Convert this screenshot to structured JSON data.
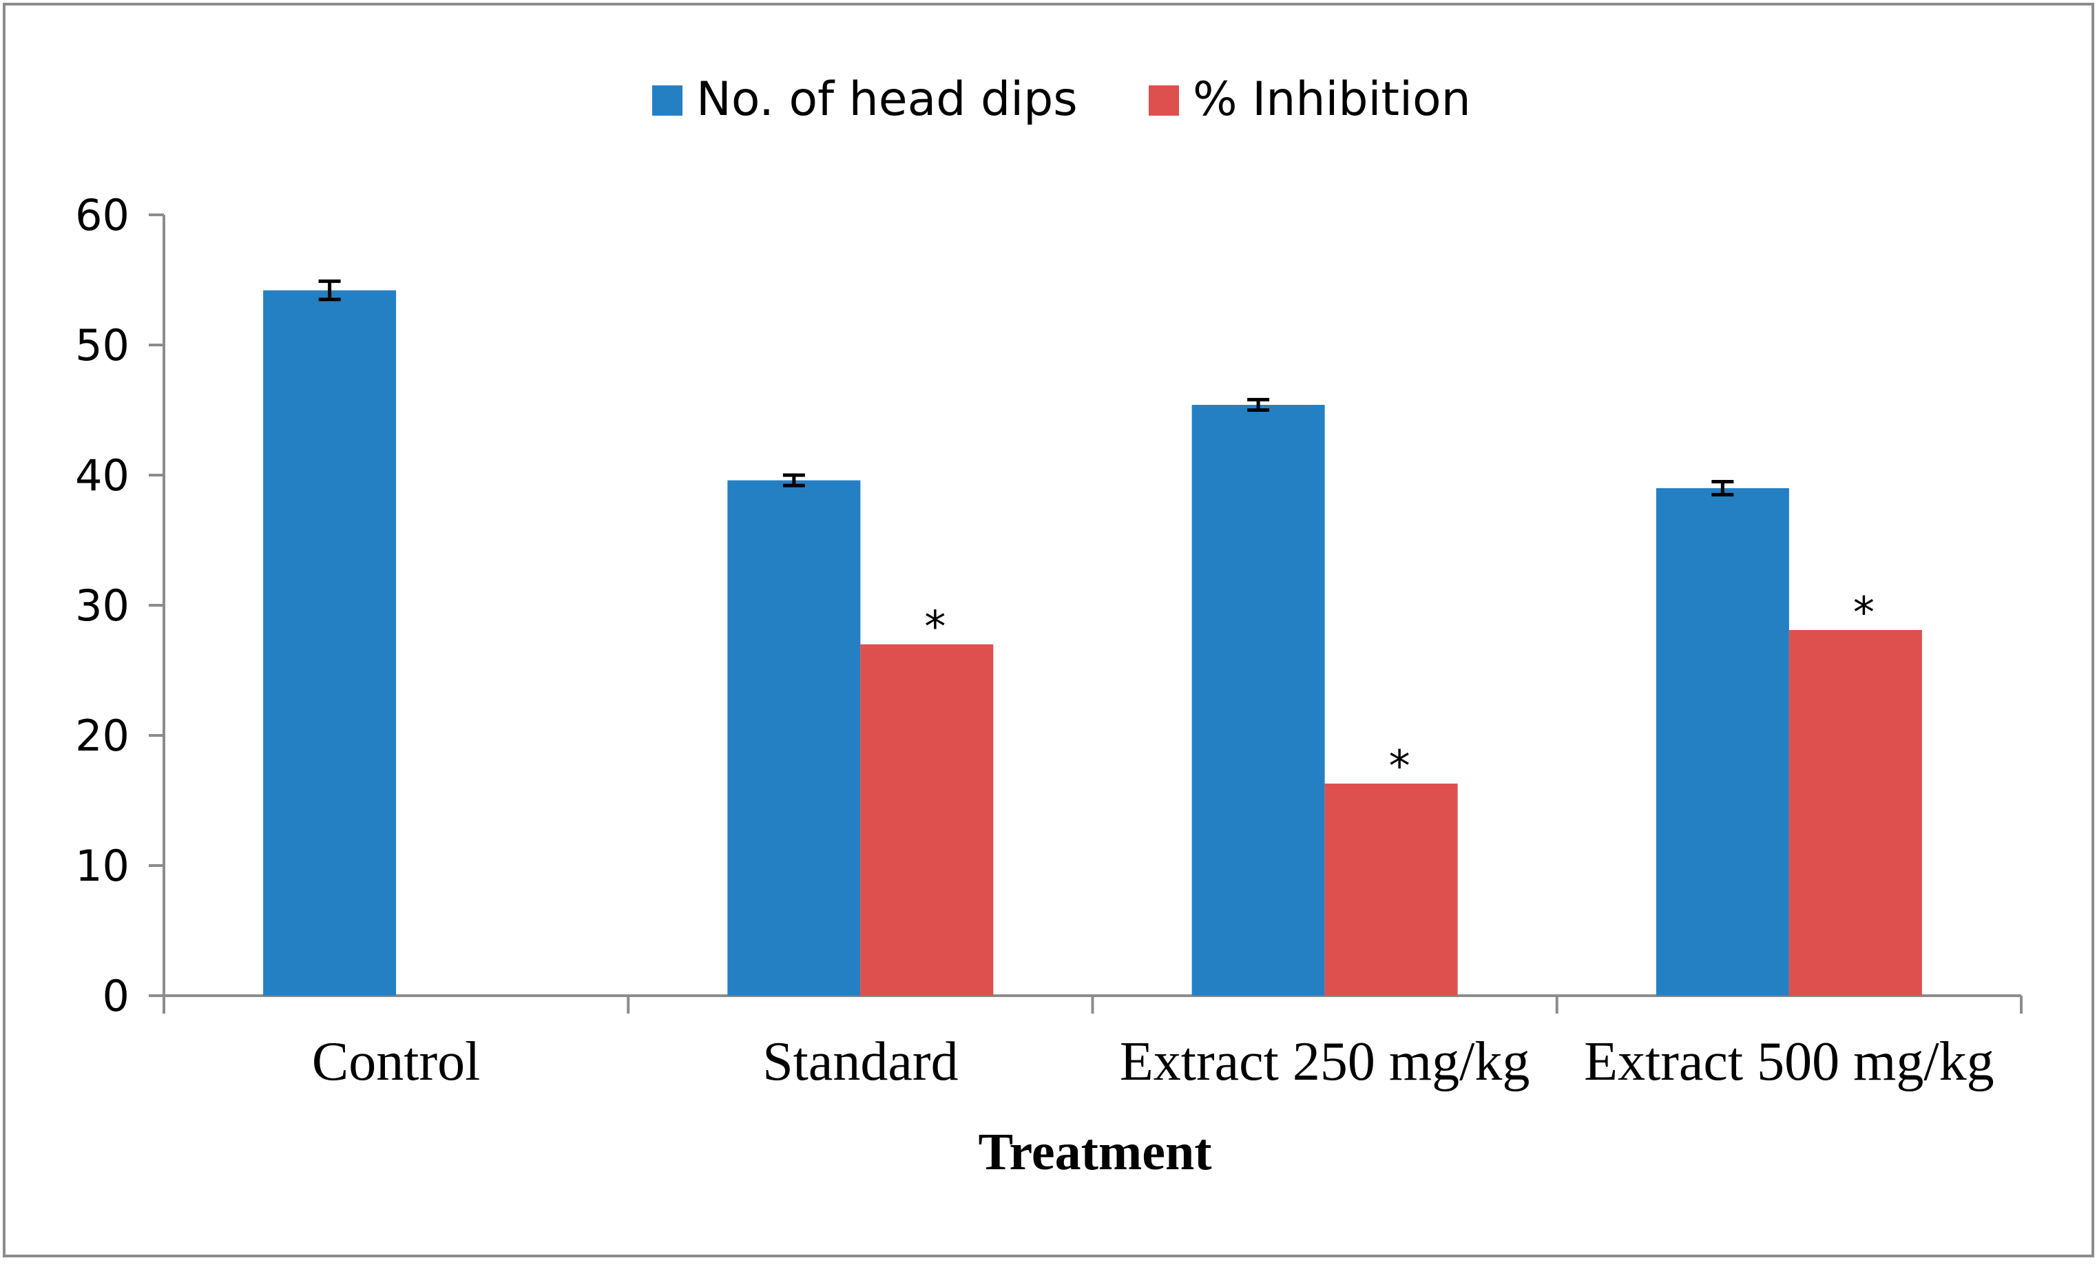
{
  "chart_data": {
    "type": "bar",
    "categories": [
      "Control",
      "Standard",
      "Extract 250 mg/kg",
      "Extract 500 mg/kg"
    ],
    "series": [
      {
        "name": "No. of head dips",
        "color": "#2580c3",
        "values": [
          54.2,
          39.6,
          45.4,
          39.0
        ],
        "errors": [
          0.7,
          0.4,
          0.4,
          0.5
        ],
        "annotations": [
          "",
          "",
          "",
          ""
        ]
      },
      {
        "name": "% Inhibition",
        "color": "#de504d",
        "values": [
          null,
          27.0,
          16.3,
          28.1
        ],
        "errors": [
          null,
          null,
          null,
          null
        ],
        "annotations": [
          "",
          "*",
          "*",
          "*"
        ]
      }
    ],
    "title": "",
    "xlabel": "Treatment",
    "ylabel": "",
    "ylim": [
      0,
      60
    ],
    "yticks": [
      0,
      10,
      20,
      30,
      40,
      50,
      60
    ],
    "grid": false,
    "legend_position": "top-center"
  }
}
